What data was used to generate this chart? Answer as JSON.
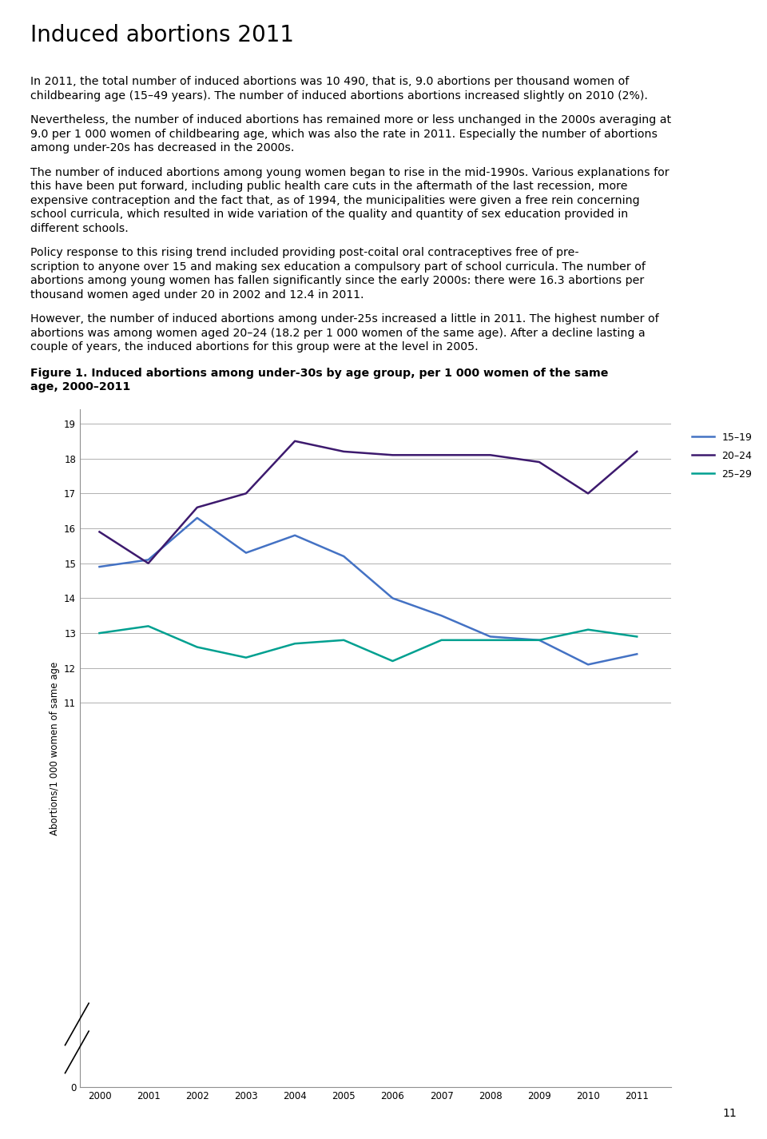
{
  "title": "Induced abortions 2011",
  "body_text": [
    "In 2011, the total number of induced abortions was 10 490, that is, 9.0 abortions per thousand women of childbearing age (15–49 years). The number of induced abortions abortions increased slightly on 2010 (2%).",
    "Nevertheless, the number of induced abortions has remained more or less unchanged in the 2000s averaging at 9.0 per 1 000 women of childbearing age, which was also the rate in 2011. Especially the number of abortions among under-20s has decreased in the 2000s.",
    "The number of induced abortions among young women began to rise in the mid-1990s. Various explanations for this have been put forward, including public health care cuts in the aftermath of the last recession, more expensive contraception and the fact that, as of 1994, the municipalities were given a free rein concerning school curricula, which resulted in wide variation of the quality and quantity of sex education provided in different schools.",
    "Policy response to this rising trend included providing post-coital oral contraceptives free of pre-scription to anyone over 15 and making sex education a compulsory part of school curricula. The number of abortions among young women has fallen significantly since the early 2000s: there were 16.3 abortions per thousand women aged under 20 in 2002 and 12.4 in 2011.",
    "However, the number of induced abortions among under-25s increased a little in 2011. The highest number of abortions was among women aged 20–24 (18.2 per 1 000 women of the same age). After a decline lasting a couple of years, the induced abortions for this group were at the level in 2005."
  ],
  "figure_title_part1": "Figure 1. Induced abortions among under-30s by age group, per 1 000 women of the same",
  "figure_title_part2": "age, 2000–2011",
  "years": [
    2000,
    2001,
    2002,
    2003,
    2004,
    2005,
    2006,
    2007,
    2008,
    2009,
    2010,
    2011
  ],
  "series_order": [
    "15-19",
    "20-24",
    "25-29"
  ],
  "series": {
    "15-19": {
      "values": [
        14.9,
        15.1,
        16.3,
        15.3,
        15.8,
        15.2,
        14.0,
        13.5,
        12.9,
        12.8,
        12.1,
        12.4
      ],
      "color": "#4472c4",
      "label": "15–19"
    },
    "20-24": {
      "values": [
        15.9,
        15.0,
        16.6,
        17.0,
        18.5,
        18.2,
        18.1,
        18.1,
        18.1,
        17.9,
        17.0,
        18.2
      ],
      "color": "#3d1a6e",
      "label": "20–24"
    },
    "25-29": {
      "values": [
        13.0,
        13.2,
        12.6,
        12.3,
        12.7,
        12.8,
        12.2,
        12.8,
        12.8,
        12.8,
        13.1,
        12.9
      ],
      "color": "#00a090",
      "label": "25–29"
    }
  },
  "ylabel": "Abortions/1 000 women of same age",
  "page_number": "11",
  "background_color": "#ffffff",
  "grid_color": "#b0b0b0",
  "title_fontsize": 20,
  "body_fontsize": 10.2,
  "figure_title_fontsize": 10.2,
  "axis_fontsize": 8.5,
  "legend_fontsize": 9
}
